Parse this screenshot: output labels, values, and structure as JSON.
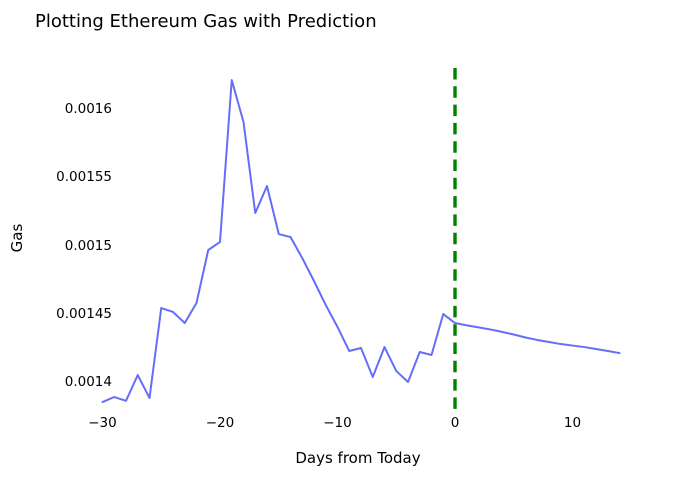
{
  "window": {
    "background": "#ffffff"
  },
  "chart_data": {
    "type": "line",
    "title": "Plotting Ethereum Gas with Prediction",
    "xlabel": "Days from Today",
    "ylabel": "Gas",
    "grid": false,
    "legend": "none",
    "axes_spines": false,
    "xlim": [
      -32,
      16
    ],
    "ylim": [
      0.001375,
      0.001632
    ],
    "x_ticks": [
      {
        "value": -30,
        "label": "−30"
      },
      {
        "value": -20,
        "label": "−20"
      },
      {
        "value": -10,
        "label": "−10"
      },
      {
        "value": 0,
        "label": "0"
      },
      {
        "value": 10,
        "label": "10"
      }
    ],
    "y_ticks": [
      {
        "value": 0.0014,
        "label": "0.0014"
      },
      {
        "value": 0.00145,
        "label": "0.00145"
      },
      {
        "value": 0.0015,
        "label": "0.0015"
      },
      {
        "value": 0.00155,
        "label": "0.00155"
      },
      {
        "value": 0.0016,
        "label": "0.0016"
      }
    ],
    "series": [
      {
        "name": "ethereum-gas-history",
        "color": "#636EFA",
        "line_style": "solid",
        "line_width": 2,
        "x": [
          -30,
          -29,
          -28,
          -27,
          -26,
          -25,
          -24,
          -23,
          -22,
          -21,
          -20,
          -19,
          -18,
          -17,
          -16,
          -15,
          -14,
          -13,
          -12,
          -11,
          -10,
          -9,
          -8,
          -7,
          -6,
          -5,
          -4,
          -3,
          -2,
          -1,
          0
        ],
        "y": [
          0.0013853,
          0.001389,
          0.0013862,
          0.0014051,
          0.0013883,
          0.0014542,
          0.0014513,
          0.0014432,
          0.0014579,
          0.0014967,
          0.0015026,
          0.0016212,
          0.0015905,
          0.0015238,
          0.0015436,
          0.0015084,
          0.0015062,
          0.0014908,
          0.001474,
          0.0014564,
          0.0014403,
          0.0014227,
          0.0014249,
          0.0014037,
          0.0014256,
          0.0014081,
          0.0014,
          0.001422,
          0.0014198,
          0.0014498,
          0.0014432
        ]
      },
      {
        "name": "gas-prediction",
        "color": "#636EFA",
        "line_style": "solid",
        "line_width": 2,
        "x": [
          0,
          1,
          2,
          3,
          4,
          5,
          6,
          7,
          8,
          9,
          10,
          11,
          12,
          13,
          14
        ],
        "y": [
          0.0014432,
          0.0014415,
          0.00144,
          0.0014385,
          0.0014367,
          0.0014348,
          0.0014326,
          0.0014308,
          0.0014293,
          0.0014278,
          0.0014267,
          0.0014256,
          0.0014242,
          0.0014227,
          0.0014212
        ]
      }
    ],
    "annotations": [
      {
        "name": "today-marker",
        "type": "vline",
        "x": 0,
        "color": "#008000",
        "line_style": "dashed",
        "line_width": 3.4
      }
    ]
  }
}
